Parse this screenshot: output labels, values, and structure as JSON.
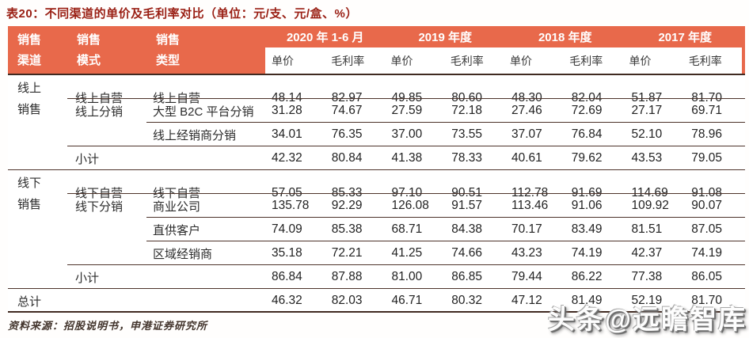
{
  "title": "表20：不同渠道的单价及毛利率对比（单位：元/支、元/盒、%）",
  "header": {
    "channel": "销售渠道",
    "model": "销售模式",
    "type": "销售类型",
    "periods": [
      "2020 年 1-6 月",
      "2019 年度",
      "2018 年度",
      "2017 年度"
    ],
    "sub_price": "单价",
    "sub_margin": "毛利率"
  },
  "rows": [
    {
      "channel": "线上销售",
      "model": "线上自营",
      "type": "线上自营",
      "values": [
        "48.14",
        "82.97",
        "49.85",
        "80.60",
        "48.30",
        "82.04",
        "51.87",
        "81.70"
      ],
      "rule_from": 2
    },
    {
      "channel": "",
      "model": "线上分销",
      "type": "大型 B2C 平台分销",
      "values": [
        "31.28",
        "74.67",
        "27.59",
        "72.18",
        "27.46",
        "72.69",
        "27.17",
        "69.71"
      ],
      "rule_from": 3
    },
    {
      "channel": "",
      "model": "",
      "type": "线上经销商分销",
      "values": [
        "34.01",
        "76.35",
        "37.00",
        "73.55",
        "37.07",
        "76.84",
        "52.10",
        "78.96"
      ],
      "rule_from": 2
    },
    {
      "channel": "",
      "model": "小计",
      "type": "",
      "values": [
        "42.32",
        "80.84",
        "41.38",
        "78.33",
        "40.61",
        "79.62",
        "43.53",
        "79.05"
      ],
      "rule_from": 1
    },
    {
      "channel": "线下销售",
      "model": "线下自营",
      "type": "线下自营",
      "values": [
        "57.05",
        "85.33",
        "97.10",
        "90.51",
        "112.78",
        "91.69",
        "114.69",
        "91.08"
      ],
      "rule_from": 2
    },
    {
      "channel": "",
      "model": "线下分销",
      "type": "商业公司",
      "values": [
        "135.78",
        "92.29",
        "126.08",
        "91.57",
        "113.46",
        "91.06",
        "109.92",
        "90.07"
      ],
      "rule_from": 3
    },
    {
      "channel": "",
      "model": "",
      "type": "直供客户",
      "values": [
        "74.09",
        "85.38",
        "68.71",
        "84.38",
        "70.17",
        "83.49",
        "81.51",
        "87.05"
      ],
      "rule_from": 3
    },
    {
      "channel": "",
      "model": "",
      "type": "区域经销商",
      "values": [
        "35.18",
        "72.21",
        "41.25",
        "74.66",
        "43.23",
        "74.19",
        "42.37",
        "74.19"
      ],
      "rule_from": 2
    },
    {
      "channel": "",
      "model": "小计",
      "type": "",
      "values": [
        "86.84",
        "87.88",
        "81.00",
        "86.85",
        "79.44",
        "86.22",
        "77.38",
        "86.05"
      ],
      "rule_from": 1
    },
    {
      "channel": "总计",
      "model": "",
      "type": "",
      "values": [
        "46.32",
        "82.03",
        "46.71",
        "80.32",
        "47.12",
        "81.49",
        "52.19",
        "81.70"
      ],
      "rule_from": 1
    }
  ],
  "footer": {
    "source": "资料来源：招股说明书，申港证券研究所"
  },
  "watermark": "头条@远瞻智库",
  "colors": {
    "accent_orange": "#E8694B",
    "title_red": "#9A2015",
    "rule_brown": "#4d332a",
    "rule_dark": "#402a21"
  }
}
